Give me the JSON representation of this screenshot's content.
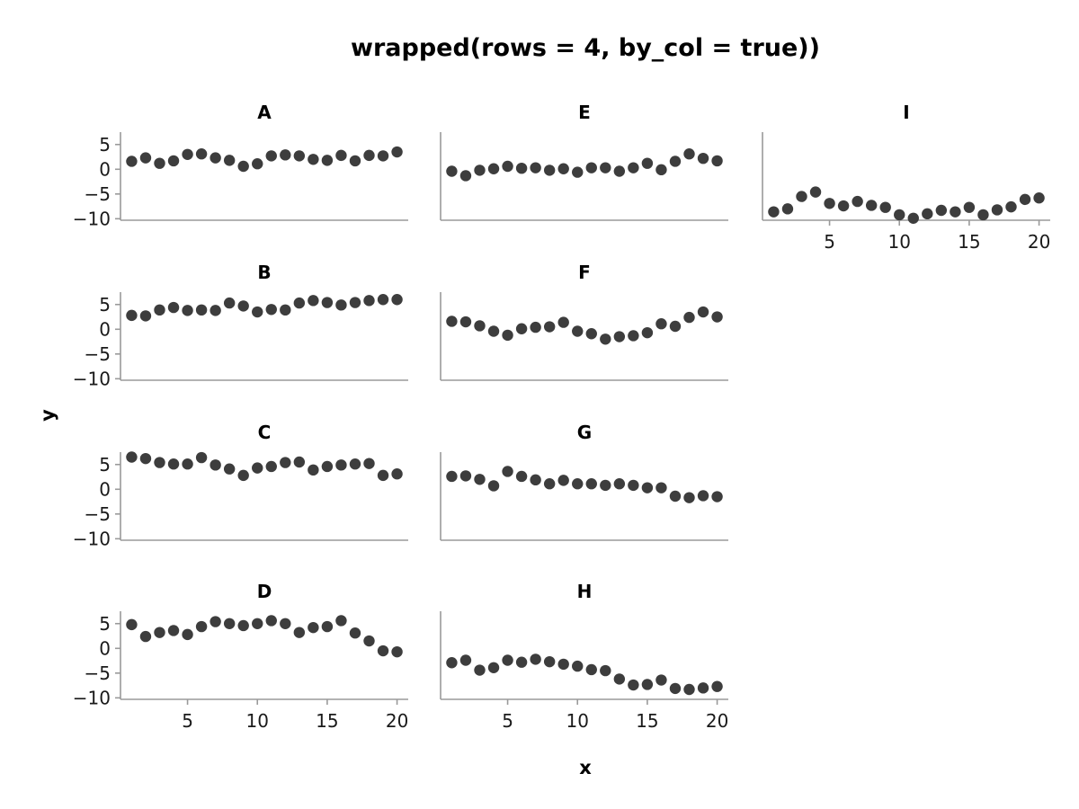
{
  "chart_data": {
    "type": "scatter",
    "title": "wrapped(rows = 4, by_col = true))",
    "xlabel": "x",
    "ylabel": "y",
    "x": [
      1,
      2,
      3,
      4,
      5,
      6,
      7,
      8,
      9,
      10,
      11,
      12,
      13,
      14,
      15,
      16,
      17,
      18,
      19,
      20
    ],
    "x_ticks": [
      5,
      10,
      15,
      20
    ],
    "y_ticks": [
      5,
      0,
      -5,
      -10
    ],
    "xlim": [
      0.2,
      20.8
    ],
    "ylim": [
      -10.3,
      7.5
    ],
    "point_color": "#3d3d3d",
    "panels": [
      {
        "name": "A",
        "values": [
          1.6,
          2.3,
          1.2,
          1.7,
          3.0,
          3.1,
          2.3,
          1.8,
          0.6,
          1.1,
          2.7,
          2.9,
          2.7,
          2.0,
          1.8,
          2.8,
          1.7,
          2.8,
          2.7,
          3.5
        ]
      },
      {
        "name": "B",
        "values": [
          2.8,
          2.7,
          3.9,
          4.4,
          3.8,
          3.9,
          3.8,
          5.3,
          4.7,
          3.5,
          4.0,
          3.9,
          5.3,
          5.8,
          5.4,
          4.9,
          5.4,
          5.8,
          6.0,
          6.0
        ]
      },
      {
        "name": "C",
        "values": [
          6.5,
          6.2,
          5.4,
          5.1,
          5.1,
          6.4,
          4.9,
          4.1,
          2.8,
          4.3,
          4.6,
          5.4,
          5.5,
          3.9,
          4.6,
          4.9,
          5.1,
          5.2,
          2.8,
          3.1
        ]
      },
      {
        "name": "D",
        "values": [
          4.8,
          2.4,
          3.2,
          3.6,
          2.8,
          4.4,
          5.4,
          5.0,
          4.6,
          5.0,
          5.6,
          5.0,
          3.2,
          4.2,
          4.4,
          5.6,
          3.1,
          1.5,
          -0.5,
          -0.7
        ]
      },
      {
        "name": "E",
        "values": [
          -0.4,
          -1.3,
          -0.2,
          0.1,
          0.6,
          0.2,
          0.3,
          -0.2,
          0.1,
          -0.6,
          0.3,
          0.3,
          -0.4,
          0.3,
          1.2,
          -0.1,
          1.6,
          3.1,
          2.2,
          1.7
        ]
      },
      {
        "name": "F",
        "values": [
          1.6,
          1.5,
          0.7,
          -0.4,
          -1.2,
          0.1,
          0.4,
          0.5,
          1.4,
          -0.4,
          -0.9,
          -2.0,
          -1.5,
          -1.3,
          -0.7,
          1.1,
          0.6,
          2.4,
          3.5,
          2.5
        ]
      },
      {
        "name": "G",
        "values": [
          2.6,
          2.7,
          2.0,
          0.7,
          3.6,
          2.6,
          1.9,
          1.1,
          1.8,
          1.1,
          1.1,
          0.8,
          1.1,
          0.8,
          0.3,
          0.3,
          -1.4,
          -1.7,
          -1.3,
          -1.5
        ]
      },
      {
        "name": "H",
        "values": [
          -2.9,
          -2.4,
          -4.4,
          -3.9,
          -2.4,
          -2.8,
          -2.2,
          -2.7,
          -3.2,
          -3.6,
          -4.3,
          -4.5,
          -6.2,
          -7.4,
          -7.3,
          -6.4,
          -8.1,
          -8.3,
          -8.0,
          -7.7
        ]
      },
      {
        "name": "I",
        "values": [
          -8.6,
          -8.0,
          -5.5,
          -4.6,
          -6.9,
          -7.4,
          -6.5,
          -7.3,
          -7.7,
          -9.2,
          -9.9,
          -9.0,
          -8.3,
          -8.6,
          -7.7,
          -9.2,
          -8.2,
          -7.6,
          -6.1,
          -5.8
        ]
      }
    ]
  }
}
